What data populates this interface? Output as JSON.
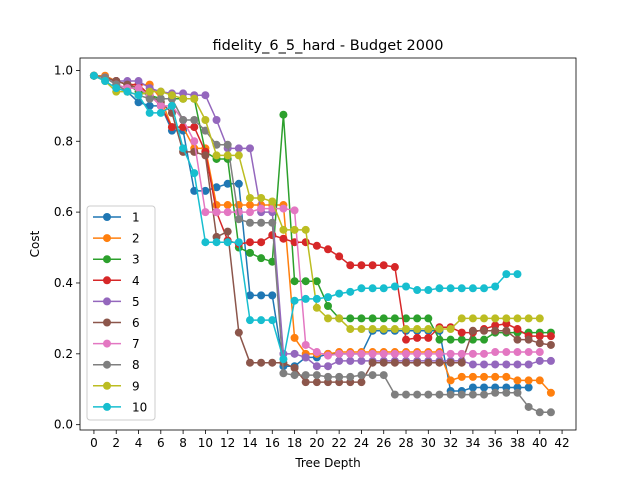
{
  "chart_data": {
    "type": "line",
    "title": "fidelity_6_5_hard - Budget  2000",
    "xlabel": "Tree Depth",
    "ylabel": "Cost",
    "xlim": [
      -1.25,
      43.25
    ],
    "ylim": [
      -0.015,
      1.035
    ],
    "xticks": [
      "0",
      "2",
      "4",
      "6",
      "8",
      "10",
      "12",
      "14",
      "16",
      "18",
      "20",
      "22",
      "24",
      "26",
      "28",
      "30",
      "32",
      "34",
      "36",
      "38",
      "40",
      "42"
    ],
    "yticks": [
      "0.0",
      "0.2",
      "0.4",
      "0.6",
      "0.8",
      "1.0"
    ],
    "legend_position": "center-left",
    "series": [
      {
        "name": "1",
        "color": "#1f77b4",
        "x": [
          0,
          1,
          2,
          3,
          4,
          5,
          6,
          7,
          8,
          9,
          10,
          11,
          12,
          13,
          14,
          15,
          16,
          17,
          18,
          19,
          20,
          21,
          22,
          23,
          24,
          25,
          26,
          27,
          28,
          29,
          30,
          31,
          32,
          33,
          34,
          35,
          36,
          37,
          38,
          39,
          40
        ],
        "y": [
          0.985,
          0.98,
          0.96,
          0.94,
          0.91,
          0.9,
          0.9,
          0.83,
          0.83,
          0.66,
          0.66,
          0.67,
          0.68,
          0.68,
          0.365,
          0.365,
          0.365,
          0.165,
          0.165,
          0.19,
          0.19,
          0.2,
          0.2,
          0.2,
          0.2,
          0.265,
          0.265,
          0.265,
          0.265,
          0.265,
          0.265,
          0.265,
          0.095,
          0.095,
          0.105,
          0.105,
          0.105,
          0.105,
          0.105,
          0.105,
          null
        ]
      },
      {
        "name": "2",
        "color": "#ff7f0e",
        "x": [
          0,
          1,
          2,
          3,
          4,
          5,
          6,
          7,
          8,
          9,
          10,
          11,
          12,
          13,
          14,
          15,
          16,
          17,
          18,
          19,
          20,
          21,
          22,
          23,
          24,
          25,
          26,
          27,
          28,
          29,
          30,
          31,
          32,
          33,
          34,
          35,
          36,
          37,
          38,
          39,
          40,
          41
        ],
        "y": [
          0.985,
          0.985,
          0.97,
          0.96,
          0.96,
          0.96,
          0.92,
          0.84,
          0.84,
          0.78,
          0.78,
          0.62,
          0.62,
          0.62,
          0.62,
          0.62,
          0.62,
          0.62,
          0.245,
          0.2,
          0.2,
          0.2,
          0.205,
          0.205,
          0.205,
          0.205,
          0.205,
          0.205,
          0.205,
          0.205,
          0.205,
          0.205,
          0.125,
          0.135,
          0.135,
          0.135,
          0.135,
          0.135,
          0.125,
          0.125,
          0.125,
          0.09
        ]
      },
      {
        "name": "3",
        "color": "#2ca02c",
        "x": [
          0,
          1,
          2,
          3,
          4,
          5,
          6,
          7,
          8,
          9,
          10,
          11,
          12,
          13,
          14,
          15,
          16,
          17,
          18,
          19,
          20,
          21,
          22,
          23,
          24,
          25,
          26,
          27,
          28,
          29,
          30,
          31,
          32,
          33,
          34,
          35,
          36,
          37,
          38,
          39,
          40,
          41
        ],
        "y": [
          0.985,
          0.98,
          0.97,
          0.96,
          0.94,
          0.93,
          0.92,
          0.92,
          0.92,
          0.92,
          0.77,
          0.75,
          0.75,
          0.5,
          0.485,
          0.47,
          0.46,
          0.875,
          0.405,
          0.405,
          0.405,
          0.335,
          0.3,
          0.3,
          0.3,
          0.3,
          0.3,
          0.3,
          0.3,
          0.3,
          0.3,
          0.24,
          0.24,
          0.24,
          0.24,
          0.24,
          0.26,
          0.26,
          0.26,
          0.26,
          0.26,
          0.26
        ]
      },
      {
        "name": "4",
        "color": "#d62728",
        "x": [
          0,
          1,
          2,
          3,
          4,
          5,
          6,
          7,
          8,
          9,
          10,
          11,
          12,
          13,
          14,
          15,
          16,
          17,
          18,
          19,
          20,
          21,
          22,
          23,
          24,
          25,
          26,
          27,
          28,
          29,
          30,
          31,
          32,
          33,
          34,
          35,
          36,
          37,
          38,
          39,
          40,
          41
        ],
        "y": [
          0.985,
          0.98,
          0.97,
          0.96,
          0.96,
          0.93,
          0.9,
          0.84,
          0.84,
          0.84,
          0.77,
          0.6,
          0.52,
          0.51,
          0.515,
          0.515,
          0.535,
          0.525,
          0.515,
          0.515,
          0.505,
          0.495,
          0.475,
          0.45,
          0.45,
          0.45,
          0.45,
          0.445,
          0.24,
          0.245,
          0.245,
          0.275,
          0.275,
          0.26,
          0.26,
          0.27,
          0.28,
          0.285,
          0.27,
          0.25,
          0.25,
          0.25
        ]
      },
      {
        "name": "5",
        "color": "#9467bd",
        "x": [
          0,
          1,
          2,
          3,
          4,
          5,
          6,
          7,
          8,
          9,
          10,
          11,
          12,
          13,
          14,
          15,
          16,
          17,
          18,
          19,
          20,
          21,
          22,
          23,
          24,
          25,
          26,
          27,
          28,
          29,
          30,
          31,
          32,
          33,
          34,
          35,
          36,
          37,
          38,
          39,
          40,
          41
        ],
        "y": [
          0.985,
          0.98,
          0.97,
          0.97,
          0.97,
          0.95,
          0.94,
          0.935,
          0.935,
          0.93,
          0.93,
          0.86,
          0.78,
          0.78,
          0.78,
          0.6,
          0.6,
          0.2,
          0.2,
          0.19,
          0.165,
          0.165,
          0.18,
          0.18,
          0.18,
          0.18,
          0.18,
          0.18,
          0.18,
          0.18,
          0.18,
          0.18,
          0.18,
          0.18,
          0.17,
          0.17,
          0.17,
          0.17,
          0.17,
          0.17,
          0.18,
          0.18
        ]
      },
      {
        "name": "6",
        "color": "#8c564b",
        "x": [
          0,
          1,
          2,
          3,
          4,
          5,
          6,
          7,
          8,
          9,
          10,
          11,
          12,
          13,
          14,
          15,
          16,
          17,
          18,
          19,
          20,
          21,
          22,
          23,
          24,
          25,
          26,
          27,
          28,
          29,
          30,
          31,
          32,
          33,
          34,
          35,
          36,
          37,
          38,
          39,
          40,
          41
        ],
        "y": [
          0.985,
          0.98,
          0.97,
          0.96,
          0.95,
          0.93,
          0.91,
          0.88,
          0.77,
          0.77,
          0.76,
          0.53,
          0.545,
          0.26,
          0.175,
          0.175,
          0.175,
          0.175,
          0.16,
          0.12,
          0.12,
          0.12,
          0.12,
          0.12,
          0.12,
          0.175,
          0.175,
          0.175,
          0.175,
          0.175,
          0.175,
          0.175,
          0.175,
          0.175,
          0.265,
          0.265,
          0.265,
          0.265,
          0.24,
          0.24,
          0.23,
          0.225
        ]
      },
      {
        "name": "7",
        "color": "#e377c2",
        "x": [
          0,
          1,
          2,
          3,
          4,
          5,
          6,
          7,
          8,
          9,
          10,
          11,
          12,
          13,
          14,
          15,
          16,
          17,
          18,
          19,
          20,
          21,
          22,
          23,
          24,
          25,
          26,
          27,
          28,
          29,
          30,
          31,
          32,
          33,
          34,
          35,
          36,
          37,
          38,
          39,
          40
        ],
        "y": [
          0.985,
          0.98,
          0.96,
          0.95,
          0.95,
          0.93,
          0.9,
          0.9,
          0.86,
          0.8,
          0.6,
          0.6,
          0.6,
          0.6,
          0.6,
          0.61,
          0.61,
          0.61,
          0.605,
          0.225,
          0.205,
          0.195,
          0.2,
          0.2,
          0.2,
          0.2,
          0.2,
          0.2,
          0.2,
          0.2,
          0.2,
          0.2,
          0.2,
          0.2,
          0.2,
          0.2,
          0.205,
          0.205,
          0.205,
          0.205,
          0.205
        ]
      },
      {
        "name": "8",
        "color": "#7f7f7f",
        "x": [
          0,
          1,
          2,
          3,
          4,
          5,
          6,
          7,
          8,
          9,
          10,
          11,
          12,
          13,
          14,
          15,
          16,
          17,
          18,
          19,
          20,
          21,
          22,
          23,
          24,
          25,
          26,
          27,
          28,
          29,
          30,
          31,
          32,
          33,
          34,
          35,
          36,
          37,
          38,
          39,
          40,
          41
        ],
        "y": [
          0.985,
          0.98,
          0.96,
          0.94,
          0.93,
          0.92,
          0.92,
          0.92,
          0.86,
          0.86,
          0.83,
          0.79,
          0.79,
          0.58,
          0.57,
          0.57,
          0.57,
          0.145,
          0.14,
          0.14,
          0.14,
          0.135,
          0.135,
          0.135,
          0.14,
          0.14,
          0.14,
          0.085,
          0.085,
          0.085,
          0.085,
          0.085,
          0.085,
          0.085,
          0.085,
          0.085,
          0.09,
          0.09,
          0.09,
          0.05,
          0.035,
          0.035
        ]
      },
      {
        "name": "9",
        "color": "#bcbd22",
        "x": [
          0,
          1,
          2,
          3,
          4,
          5,
          6,
          7,
          8,
          9,
          10,
          11,
          12,
          13,
          14,
          15,
          16,
          17,
          18,
          19,
          20,
          21,
          22,
          23,
          24,
          25,
          26,
          27,
          28,
          29,
          30,
          31,
          32,
          33,
          34,
          35,
          36,
          37,
          38,
          39,
          40
        ],
        "y": [
          0.985,
          0.97,
          0.94,
          0.94,
          0.93,
          0.94,
          0.94,
          0.93,
          0.92,
          0.92,
          0.86,
          0.76,
          0.76,
          0.76,
          0.64,
          0.64,
          0.63,
          0.55,
          0.55,
          0.55,
          0.33,
          0.3,
          0.3,
          0.27,
          0.27,
          0.27,
          0.27,
          0.27,
          0.27,
          0.27,
          0.27,
          0.27,
          0.27,
          0.3,
          0.3,
          0.3,
          0.3,
          0.3,
          0.3,
          0.3,
          0.3
        ]
      },
      {
        "name": "10",
        "color": "#17becf",
        "x": [
          0,
          1,
          2,
          3,
          4,
          5,
          6,
          7,
          8,
          9,
          10,
          11,
          12,
          13,
          14,
          15,
          16,
          17,
          18,
          19,
          20,
          21,
          22,
          23,
          24,
          25,
          26,
          27,
          28,
          29,
          30,
          31,
          32,
          33,
          34,
          35,
          36,
          37,
          38
        ],
        "y": [
          0.985,
          0.97,
          0.95,
          0.94,
          0.93,
          0.88,
          0.88,
          0.9,
          0.78,
          0.71,
          0.515,
          0.515,
          0.515,
          0.515,
          0.295,
          0.295,
          0.295,
          0.185,
          0.35,
          0.355,
          0.355,
          0.36,
          0.37,
          0.375,
          0.385,
          0.385,
          0.385,
          0.39,
          0.39,
          0.38,
          0.38,
          0.385,
          0.385,
          0.385,
          0.385,
          0.385,
          0.39,
          0.425,
          0.425
        ]
      }
    ]
  }
}
